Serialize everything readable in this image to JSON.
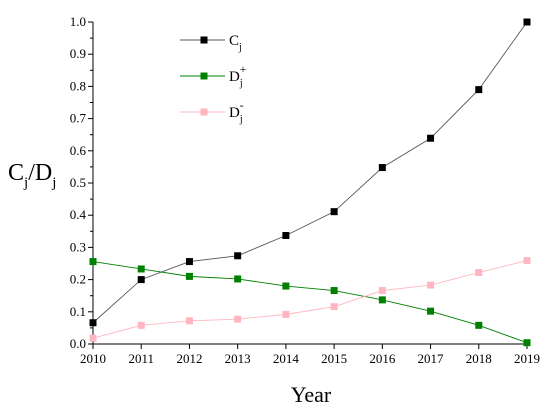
{
  "chart_data": {
    "type": "line",
    "xlabel": "Year",
    "ylabel": {
      "main": "C",
      "sub1": "j",
      "sep": "/D",
      "sub2": "j"
    },
    "xlim": [
      2010,
      2019
    ],
    "ylim": [
      0,
      1.0
    ],
    "x": [
      2010,
      2011,
      2012,
      2013,
      2014,
      2015,
      2016,
      2017,
      2018,
      2019
    ],
    "x_ticks": [
      "2010",
      "2011",
      "2012",
      "2013",
      "2014",
      "2015",
      "2016",
      "2017",
      "2018",
      "2019"
    ],
    "y_ticks": [
      "0.0",
      "0.1",
      "0.2",
      "0.3",
      "0.4",
      "0.5",
      "0.6",
      "0.7",
      "0.8",
      "0.9",
      "1.0"
    ],
    "grid": false,
    "legend_position": "top-left",
    "series": [
      {
        "name": "C",
        "sub": "j",
        "sup": "",
        "color": "#000000",
        "line_color": "#555555",
        "values": [
          0.066,
          0.2,
          0.256,
          0.274,
          0.337,
          0.411,
          0.548,
          0.639,
          0.79,
          1.0
        ]
      },
      {
        "name": "D",
        "sub": "j",
        "sup": "+",
        "color": "#008000",
        "line_color": "#008000",
        "values": [
          0.256,
          0.233,
          0.21,
          0.202,
          0.18,
          0.166,
          0.137,
          0.102,
          0.058,
          0.004
        ]
      },
      {
        "name": "D",
        "sub": "j",
        "sup": "-",
        "color": "#ffb6c1",
        "line_color": "#ffb6c1",
        "values": [
          0.018,
          0.058,
          0.072,
          0.077,
          0.092,
          0.116,
          0.166,
          0.183,
          0.222,
          0.259
        ]
      }
    ]
  }
}
